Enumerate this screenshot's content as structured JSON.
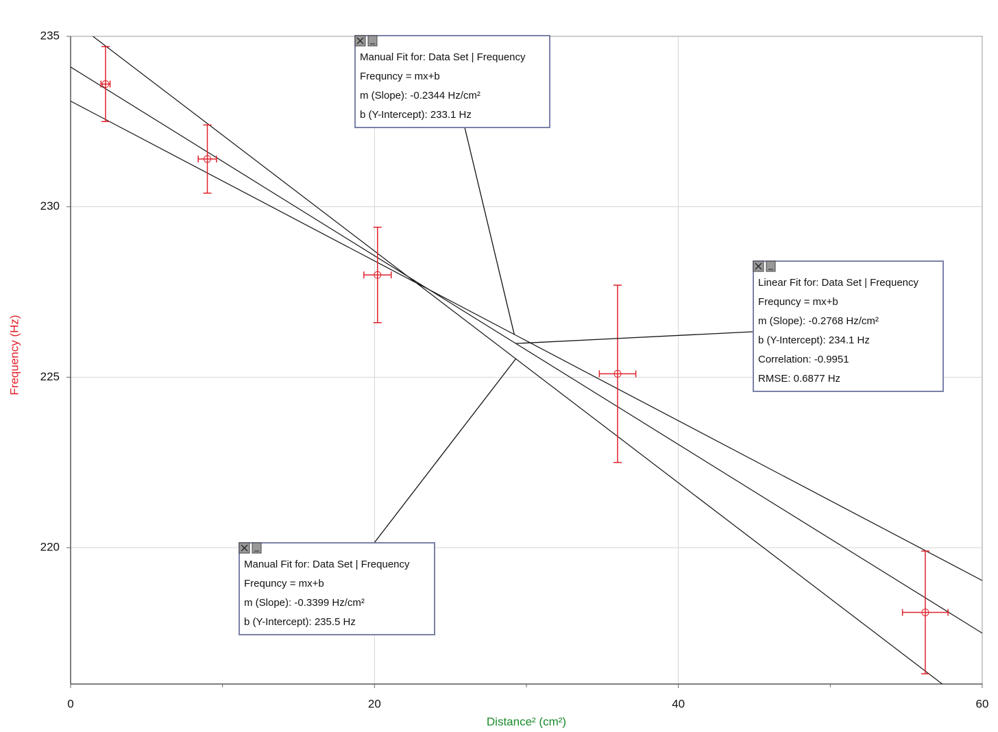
{
  "chart_data": {
    "type": "scatter",
    "x_label": "Distance² (cm²)",
    "y_label": "Frequency (Hz)",
    "xlim": [
      0,
      60
    ],
    "ylim": [
      216,
      235
    ],
    "xticks": [
      0,
      20,
      40,
      60
    ],
    "xminor": [
      10,
      30,
      50
    ],
    "yticks": [
      220,
      225,
      230,
      235
    ],
    "grid": true,
    "color": "#e0202a",
    "x": [
      2.3,
      9.0,
      20.2,
      36.0,
      56.25
    ],
    "x_errors": [
      0.3,
      0.6,
      0.9,
      1.2,
      1.5
    ],
    "values": [
      233.6,
      231.4,
      228.0,
      225.1,
      218.1
    ],
    "y_errors": [
      1.1,
      1.0,
      1.4,
      2.6,
      1.8
    ],
    "fits": [
      {
        "slope": -0.2344,
        "intercept": 233.1,
        "labels": [
          "Manual Fit for: Data Set | Frequency",
          "Frequncy = mx+b",
          "m (Slope): -0.2344 Hz/cm²",
          "b (Y-Intercept): 233.1 Hz"
        ]
      },
      {
        "slope": -0.2768,
        "intercept": 234.1,
        "labels": [
          "Linear Fit for: Data Set | Frequency",
          "Frequncy = mx+b",
          "m (Slope): -0.2768 Hz/cm²",
          "b (Y-Intercept): 234.1 Hz",
          "Correlation: -0.9951",
          "RMSE: 0.6877 Hz"
        ]
      },
      {
        "slope": -0.3399,
        "intercept": 235.5,
        "labels": [
          "Manual Fit for: Data Set | Frequency",
          "Frequncy = mx+b",
          "m (Slope): -0.3399 Hz/cm²",
          "b (Y-Intercept): 235.5 Hz"
        ]
      }
    ]
  }
}
